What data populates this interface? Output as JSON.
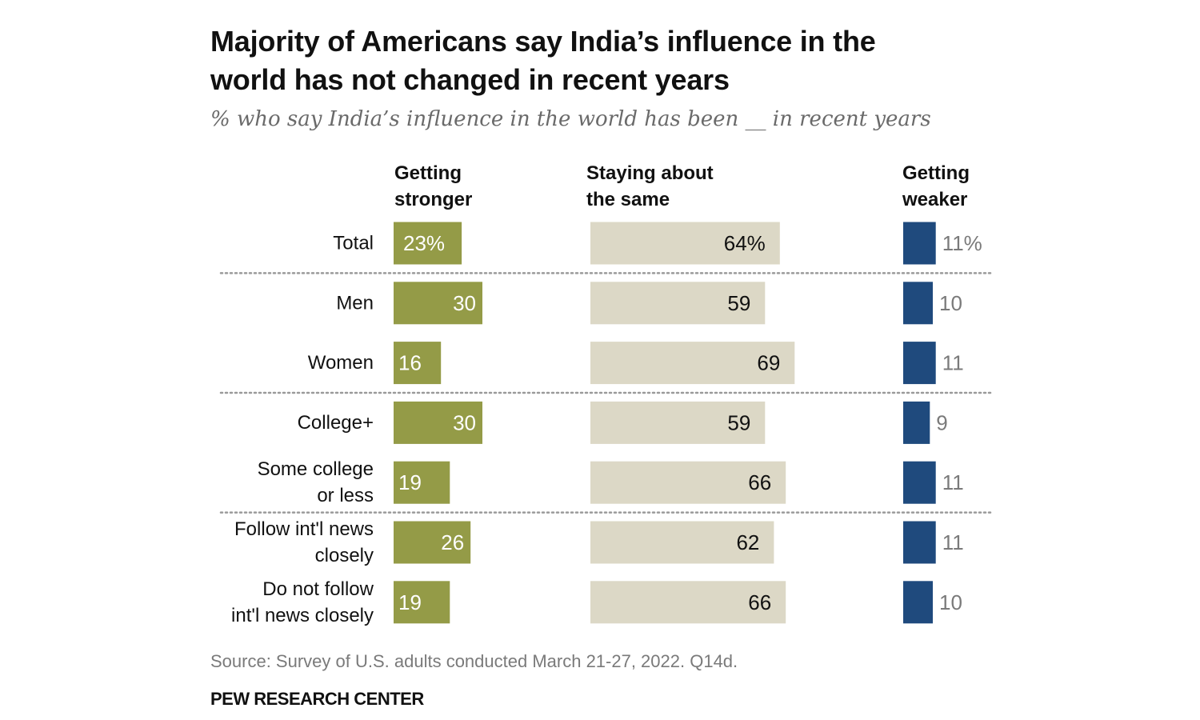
{
  "chart_data": {
    "type": "bar",
    "orientation": "horizontal",
    "layout": "three-column-diverging",
    "title": "Majority of Americans say India’s influence in the world has not changed in recent years",
    "title_lines": [
      "Majority of Americans say India’s influence in the",
      "world has not changed in recent years"
    ],
    "subtitle": "% who say India’s influence in the world has been __ in recent years",
    "xlabel": "",
    "ylabel": "",
    "xlim": [
      0,
      100
    ],
    "unit": "%",
    "grid": false,
    "legend": "column headers at top",
    "categories": [
      {
        "label_lines": [
          "Total"
        ],
        "group": 0
      },
      {
        "label_lines": [
          "Men"
        ],
        "group": 1
      },
      {
        "label_lines": [
          "Women"
        ],
        "group": 1
      },
      {
        "label_lines": [
          "College+"
        ],
        "group": 2
      },
      {
        "label_lines": [
          "Some college",
          "or less"
        ],
        "group": 2
      },
      {
        "label_lines": [
          "Follow int'l news",
          "closely"
        ],
        "group": 3
      },
      {
        "label_lines": [
          "Do not follow",
          "int'l news closely"
        ],
        "group": 3
      }
    ],
    "series": [
      {
        "name": "Getting stronger",
        "header_lines": [
          "Getting",
          "stronger"
        ],
        "color": "#949b47",
        "label_color": "#ffffff",
        "values": [
          23,
          30,
          16,
          30,
          19,
          26,
          19
        ],
        "labels": [
          "23%",
          "30",
          "16",
          "30",
          "19",
          "26",
          "19"
        ]
      },
      {
        "name": "Staying about the same",
        "header_lines": [
          "Staying about",
          "the same"
        ],
        "color": "#dcd8c6",
        "label_color": "#111111",
        "values": [
          64,
          59,
          69,
          59,
          66,
          62,
          66
        ],
        "labels": [
          "64%",
          "59",
          "69",
          "59",
          "66",
          "62",
          "66"
        ]
      },
      {
        "name": "Getting weaker",
        "header_lines": [
          "Getting",
          "weaker"
        ],
        "color": "#1f4a7d",
        "label_color": "#7a7a7a",
        "values": [
          11,
          10,
          11,
          9,
          11,
          11,
          10
        ],
        "labels": [
          "11%",
          "10",
          "11",
          "9",
          "11",
          "11",
          "10"
        ]
      }
    ],
    "separators_after_rows": [
      0,
      2,
      4
    ],
    "source": "Source: Survey of U.S. adults conducted March 21-27, 2022. Q14d.",
    "brand": "PEW RESEARCH CENTER"
  }
}
